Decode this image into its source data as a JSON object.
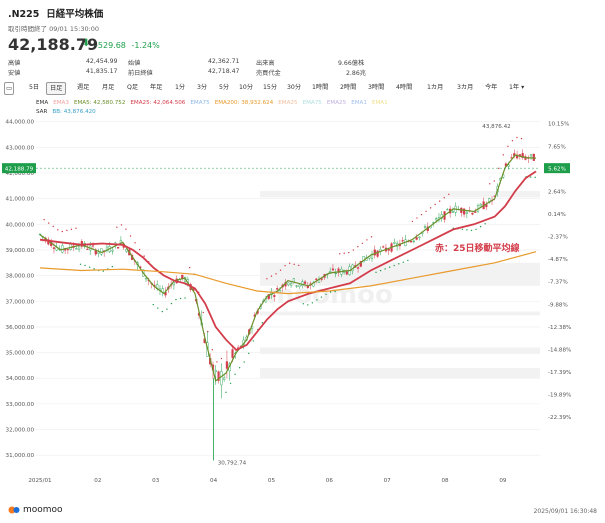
{
  "header": {
    "symbol": ".N225",
    "name": "日経平均株価",
    "status": "取引時間終了 09/01 15:30:00"
  },
  "quote": {
    "price": "42,188.79",
    "change": "-529.68",
    "change_pct": "-1.24%"
  },
  "stats": [
    {
      "label": "高値",
      "value": "42,454.99",
      "label2": "始値",
      "value2": "42,362.71",
      "label3": "出来高",
      "value3": "9.66億株"
    },
    {
      "label": "安値",
      "value": "41,835.17",
      "label2": "前日終値",
      "value2": "42,718.47",
      "label3": "売買代金",
      "value3": "2.86兆"
    }
  ],
  "tabs": [
    "5日",
    "日足",
    "週足",
    "月足",
    "Q足",
    "年足",
    "1分",
    "3分",
    "5分",
    "10分",
    "15分",
    "30分",
    "1時間",
    "2時間",
    "3時間",
    "4時間",
    "1カ月",
    "3カ月",
    "今年",
    "1年"
  ],
  "active_tab": "日足",
  "legend1": [
    {
      "text": "EMA",
      "color": "#333333"
    },
    {
      "text": "EMA3",
      "color": "#f2a0a0"
    },
    {
      "text": "EMA5: 42,580.752",
      "color": "#6a8f2a"
    },
    {
      "text": "EMA25: 42,064.506",
      "color": "#d33c4a"
    },
    {
      "text": "EMA75",
      "color": "#8fb8e8"
    },
    {
      "text": "EMA200: 38,932.624",
      "color": "#e89a2c"
    },
    {
      "text": "EMA25",
      "color": "#f0c0a0"
    },
    {
      "text": "EMA75",
      "color": "#b0e0e0"
    },
    {
      "text": "EMA25",
      "color": "#c0b0e0"
    },
    {
      "text": "EMA1",
      "color": "#a0c0f0"
    },
    {
      "text": "EMA1",
      "color": "#f0e090"
    }
  ],
  "legend2": [
    {
      "text": "SAR",
      "color": "#333333"
    },
    {
      "text": "BB: 43,876.420",
      "color": "#3aa0c8"
    }
  ],
  "annotation": "赤：25日移動平均線",
  "price_tag": "42,188.79",
  "pct_tag": "5.62%",
  "high_label": "43,876.42",
  "low_label": "30,792.74",
  "y_left": [
    "44,000.00",
    "43,000.00",
    "42,000.00",
    "41,000.00",
    "40,000.00",
    "39,000.00",
    "38,000.00",
    "37,000.00",
    "36,000.00",
    "35,000.00",
    "34,000.00",
    "33,000.00",
    "32,000.00",
    "31,000.00"
  ],
  "y_right": [
    "10.15%",
    "7.65%",
    "5.14%",
    "2.64%",
    "0.14%",
    "-2.37%",
    "-4.87%",
    "-7.37%",
    "-9.88%",
    "-12.38%",
    "-14.88%",
    "-17.39%",
    "-19.89%",
    "-22.39%"
  ],
  "x_labels": [
    "2025/01",
    "02",
    "03",
    "04",
    "05",
    "06",
    "07",
    "08",
    "09"
  ],
  "footer": {
    "brand": "moomoo",
    "timestamp": "2025/09/01 16:30:48"
  },
  "colors": {
    "up": "#1e9e4a",
    "down": "#d33c4a",
    "ema25": "#d33c4a",
    "ema5": "#6a8f2a",
    "ema200": "#e89a2c",
    "sar": "#1e9e4a"
  },
  "chart_data": {
    "type": "candlestick",
    "ylim": [
      30500,
      44300
    ],
    "series": [
      {
        "name": "EMA5",
        "points": [
          [
            0,
            39600
          ],
          [
            10,
            39000
          ],
          [
            20,
            39200
          ],
          [
            30,
            38900
          ],
          [
            40,
            39300
          ],
          [
            45,
            38700
          ],
          [
            50,
            38100
          ],
          [
            55,
            37600
          ],
          [
            60,
            37300
          ],
          [
            65,
            37800
          ],
          [
            70,
            37900
          ],
          [
            75,
            37300
          ],
          [
            80,
            35500
          ],
          [
            85,
            33900
          ],
          [
            90,
            34200
          ],
          [
            95,
            35000
          ],
          [
            100,
            35500
          ],
          [
            105,
            36600
          ],
          [
            110,
            37200
          ],
          [
            115,
            37400
          ],
          [
            120,
            37800
          ],
          [
            130,
            37600
          ],
          [
            140,
            38100
          ],
          [
            150,
            38200
          ],
          [
            160,
            38800
          ],
          [
            170,
            39100
          ],
          [
            180,
            39400
          ],
          [
            190,
            40000
          ],
          [
            200,
            40600
          ],
          [
            210,
            40500
          ],
          [
            220,
            41000
          ],
          [
            225,
            42200
          ],
          [
            230,
            42700
          ],
          [
            235,
            42600
          ],
          [
            240,
            42580
          ]
        ]
      },
      {
        "name": "EMA25",
        "points": [
          [
            0,
            39400
          ],
          [
            10,
            39300
          ],
          [
            20,
            39200
          ],
          [
            30,
            39250
          ],
          [
            40,
            39200
          ],
          [
            45,
            39000
          ],
          [
            50,
            38700
          ],
          [
            55,
            38300
          ],
          [
            60,
            38000
          ],
          [
            65,
            37800
          ],
          [
            70,
            37700
          ],
          [
            75,
            37500
          ],
          [
            80,
            36900
          ],
          [
            85,
            36000
          ],
          [
            90,
            35500
          ],
          [
            95,
            35100
          ],
          [
            100,
            35300
          ],
          [
            105,
            35800
          ],
          [
            110,
            36300
          ],
          [
            115,
            36700
          ],
          [
            120,
            37000
          ],
          [
            130,
            37300
          ],
          [
            140,
            37500
          ],
          [
            150,
            37700
          ],
          [
            160,
            38200
          ],
          [
            170,
            38600
          ],
          [
            180,
            39000
          ],
          [
            190,
            39400
          ],
          [
            200,
            39800
          ],
          [
            210,
            40000
          ],
          [
            220,
            40300
          ],
          [
            225,
            40700
          ],
          [
            230,
            41300
          ],
          [
            235,
            41800
          ],
          [
            240,
            42064
          ]
        ]
      },
      {
        "name": "EMA200",
        "points": [
          [
            0,
            38300
          ],
          [
            20,
            38200
          ],
          [
            40,
            38250
          ],
          [
            60,
            38150
          ],
          [
            75,
            38050
          ],
          [
            90,
            37700
          ],
          [
            105,
            37400
          ],
          [
            120,
            37300
          ],
          [
            140,
            37400
          ],
          [
            160,
            37600
          ],
          [
            180,
            37900
          ],
          [
            200,
            38200
          ],
          [
            220,
            38500
          ],
          [
            240,
            38932
          ]
        ]
      }
    ]
  }
}
